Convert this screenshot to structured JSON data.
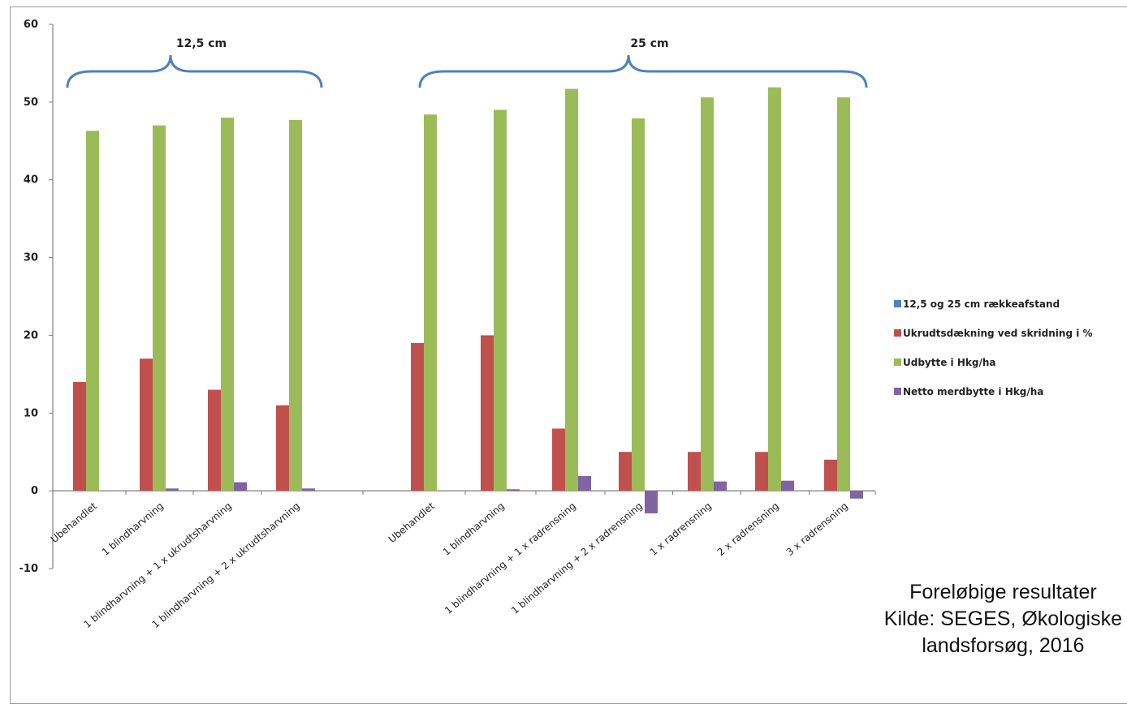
{
  "chart_data": {
    "type": "bar",
    "ylim": [
      -10,
      60
    ],
    "yticks": [
      -10,
      0,
      10,
      20,
      30,
      40,
      50,
      60
    ],
    "grid": false,
    "legend_position": "right",
    "categories": [
      "Ubehandlet",
      "1 blindharvning",
      "1 blindharvning + 1 x ukrudtsharvning",
      "1 blindharvning + 2 x ukrudtsharvning",
      "Ubehandlet",
      "1 blindharvning",
      "1 blindharvning + 1 x radrensning",
      "1 blindharvning + 2 x radrensning",
      "1 x radrensning",
      "2 x radrensning",
      "3 x radrensning"
    ],
    "groups": [
      {
        "label": "12,5 cm",
        "categories": [
          0,
          1,
          2,
          3
        ]
      },
      {
        "label": "25 cm",
        "categories": [
          4,
          5,
          6,
          7,
          8,
          9,
          10
        ]
      }
    ],
    "series": [
      {
        "name": "12,5 og 25 cm rækkeafstand",
        "color": "#4f81bd",
        "values": [
          0,
          0,
          0,
          0,
          0,
          0,
          0,
          0,
          0,
          0,
          0
        ]
      },
      {
        "name": "Ukrudtsdækning ved skridning i %",
        "color": "#c0504d",
        "values": [
          14,
          17,
          13,
          11,
          19,
          20,
          8,
          5,
          5,
          5,
          4
        ]
      },
      {
        "name": "Udbytte i Hkg/ha",
        "color": "#9bbb59",
        "values": [
          46.3,
          47,
          48,
          47.7,
          48.4,
          49,
          51.7,
          47.9,
          50.6,
          51.9,
          50.6
        ]
      },
      {
        "name": "Netto merdbytte i Hkg/ha",
        "color": "#8064a2",
        "values": [
          null,
          0.3,
          1.1,
          0.3,
          null,
          0.2,
          1.9,
          -2.9,
          1.2,
          1.3,
          -1
        ]
      }
    ]
  },
  "caption": {
    "line1": "Foreløbige resultater",
    "line2": "Kilde: SEGES, Økologiske",
    "line3": "landsforsøg, 2016"
  }
}
